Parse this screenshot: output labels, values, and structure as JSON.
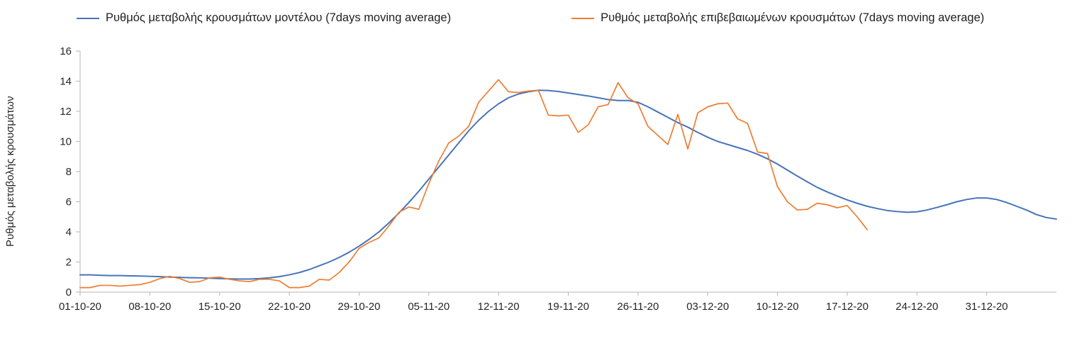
{
  "chart_data": {
    "type": "line",
    "title": "",
    "xlabel": "",
    "ylabel": "Ρυθμός μεταβολής κρουσμάτων",
    "ylim": [
      0,
      16
    ],
    "y_ticks": [
      0,
      2,
      4,
      6,
      8,
      10,
      12,
      14,
      16
    ],
    "x_tick_labels": [
      "01-10-20",
      "08-10-20",
      "15-10-20",
      "22-10-20",
      "29-10-20",
      "05-11-20",
      "12-11-20",
      "19-11-20",
      "26-11-20",
      "03-12-20",
      "10-12-20",
      "17-12-20",
      "24-12-20",
      "31-12-20"
    ],
    "x_start_date": "01-10-20",
    "x_interval": "1 day",
    "grid": false,
    "legend_position": "top",
    "axis_color": "#b5b5b5",
    "series": [
      {
        "id": "model-series",
        "name": "Ρυθμός μεταβολής κρουσμάτων μοντέλου (7days moving average)",
        "color": "#4674b9",
        "values": [
          1.15,
          1.15,
          1.12,
          1.1,
          1.1,
          1.08,
          1.07,
          1.05,
          1.03,
          1.0,
          0.98,
          0.96,
          0.95,
          0.93,
          0.9,
          0.88,
          0.87,
          0.87,
          0.9,
          0.95,
          1.03,
          1.15,
          1.3,
          1.5,
          1.75,
          2.0,
          2.3,
          2.65,
          3.05,
          3.5,
          4.0,
          4.6,
          5.25,
          5.95,
          6.7,
          7.5,
          8.3,
          9.1,
          9.9,
          10.7,
          11.4,
          12.0,
          12.5,
          12.9,
          13.15,
          13.3,
          13.4,
          13.38,
          13.32,
          13.22,
          13.12,
          13.02,
          12.9,
          12.78,
          12.72,
          12.72,
          12.6,
          12.3,
          11.95,
          11.6,
          11.25,
          10.95,
          10.6,
          10.28,
          10.0,
          9.8,
          9.6,
          9.4,
          9.15,
          8.85,
          8.5,
          8.1,
          7.7,
          7.32,
          6.95,
          6.65,
          6.38,
          6.12,
          5.9,
          5.7,
          5.55,
          5.42,
          5.35,
          5.3,
          5.33,
          5.45,
          5.62,
          5.8,
          6.0,
          6.15,
          6.25,
          6.25,
          6.15,
          5.95,
          5.7,
          5.45,
          5.15,
          4.95,
          4.85
        ]
      },
      {
        "id": "confirmed-series",
        "name": "Ρυθμός μεταβολής επιβεβαιωμένων κρουσμάτων (7days moving average)",
        "color": "#ED7D31",
        "values": [
          0.3,
          0.3,
          0.45,
          0.45,
          0.4,
          0.45,
          0.5,
          0.65,
          0.9,
          1.05,
          0.9,
          0.65,
          0.7,
          0.95,
          1.0,
          0.85,
          0.75,
          0.7,
          0.85,
          0.85,
          0.75,
          0.3,
          0.3,
          0.4,
          0.85,
          0.8,
          1.3,
          2.0,
          2.9,
          3.3,
          3.6,
          4.4,
          5.3,
          5.65,
          5.5,
          7.2,
          8.7,
          9.9,
          10.35,
          11.0,
          12.6,
          13.35,
          14.1,
          13.3,
          13.25,
          13.35,
          13.4,
          11.75,
          11.7,
          11.75,
          10.6,
          11.1,
          12.3,
          12.45,
          13.9,
          12.9,
          12.5,
          11.0,
          10.4,
          9.8,
          11.8,
          9.5,
          11.9,
          12.3,
          12.5,
          12.55,
          11.5,
          11.2,
          9.3,
          9.2,
          7.0,
          6.0,
          5.45,
          5.5,
          5.9,
          5.8,
          5.6,
          5.75,
          5.0,
          4.15
        ]
      }
    ]
  }
}
